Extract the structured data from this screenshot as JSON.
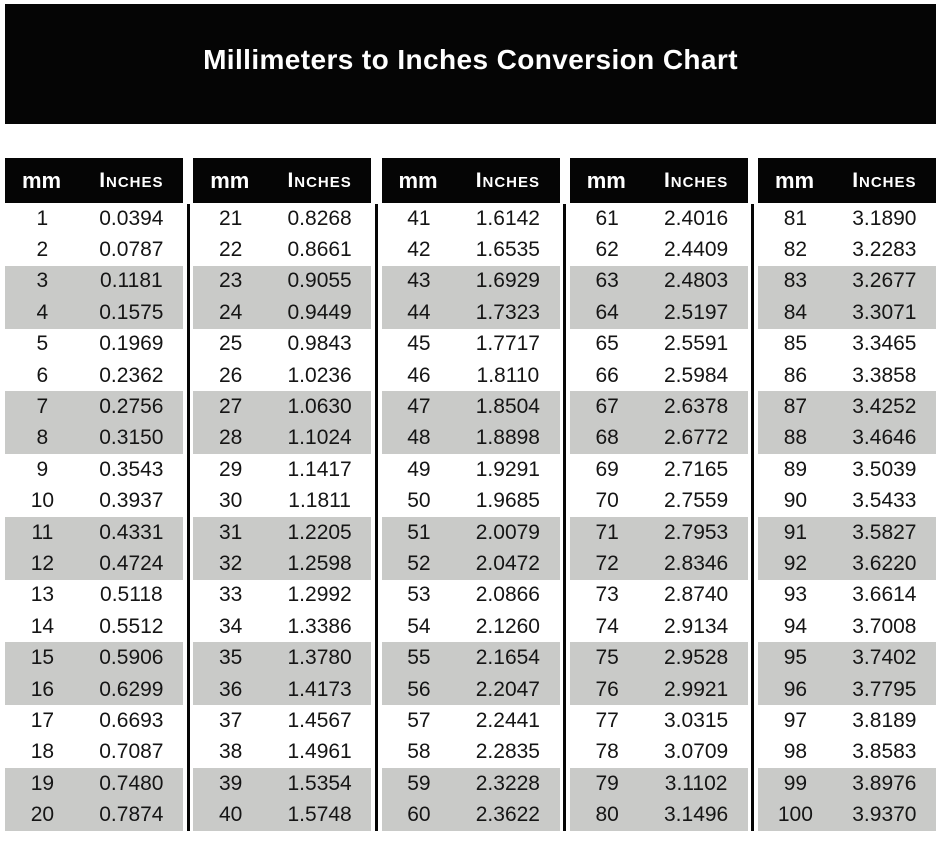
{
  "title": "Millimeters to Inches Conversion Chart",
  "colors": {
    "header_bg": "#050505",
    "header_text": "#ffffff",
    "stripe": "#c9cac8",
    "row_text": "#151515",
    "background": "#ffffff"
  },
  "table": {
    "column_headers": {
      "mm": "mm",
      "inches": "Inches"
    },
    "groups": [
      {
        "rows": [
          {
            "mm": "1",
            "inches": "0.0394"
          },
          {
            "mm": "2",
            "inches": "0.0787"
          },
          {
            "mm": "3",
            "inches": "0.1181"
          },
          {
            "mm": "4",
            "inches": "0.1575"
          },
          {
            "mm": "5",
            "inches": "0.1969"
          },
          {
            "mm": "6",
            "inches": "0.2362"
          },
          {
            "mm": "7",
            "inches": "0.2756"
          },
          {
            "mm": "8",
            "inches": "0.3150"
          },
          {
            "mm": "9",
            "inches": "0.3543"
          },
          {
            "mm": "10",
            "inches": "0.3937"
          },
          {
            "mm": "11",
            "inches": "0.4331"
          },
          {
            "mm": "12",
            "inches": "0.4724"
          },
          {
            "mm": "13",
            "inches": "0.5118"
          },
          {
            "mm": "14",
            "inches": "0.5512"
          },
          {
            "mm": "15",
            "inches": "0.5906"
          },
          {
            "mm": "16",
            "inches": "0.6299"
          },
          {
            "mm": "17",
            "inches": "0.6693"
          },
          {
            "mm": "18",
            "inches": "0.7087"
          },
          {
            "mm": "19",
            "inches": "0.7480"
          },
          {
            "mm": "20",
            "inches": "0.7874"
          }
        ]
      },
      {
        "rows": [
          {
            "mm": "21",
            "inches": "0.8268"
          },
          {
            "mm": "22",
            "inches": "0.8661"
          },
          {
            "mm": "23",
            "inches": "0.9055"
          },
          {
            "mm": "24",
            "inches": "0.9449"
          },
          {
            "mm": "25",
            "inches": "0.9843"
          },
          {
            "mm": "26",
            "inches": "1.0236"
          },
          {
            "mm": "27",
            "inches": "1.0630"
          },
          {
            "mm": "28",
            "inches": "1.1024"
          },
          {
            "mm": "29",
            "inches": "1.1417"
          },
          {
            "mm": "30",
            "inches": "1.1811"
          },
          {
            "mm": "31",
            "inches": "1.2205"
          },
          {
            "mm": "32",
            "inches": "1.2598"
          },
          {
            "mm": "33",
            "inches": "1.2992"
          },
          {
            "mm": "34",
            "inches": "1.3386"
          },
          {
            "mm": "35",
            "inches": "1.3780"
          },
          {
            "mm": "36",
            "inches": "1.4173"
          },
          {
            "mm": "37",
            "inches": "1.4567"
          },
          {
            "mm": "38",
            "inches": "1.4961"
          },
          {
            "mm": "39",
            "inches": "1.5354"
          },
          {
            "mm": "40",
            "inches": "1.5748"
          }
        ]
      },
      {
        "rows": [
          {
            "mm": "41",
            "inches": "1.6142"
          },
          {
            "mm": "42",
            "inches": "1.6535"
          },
          {
            "mm": "43",
            "inches": "1.6929"
          },
          {
            "mm": "44",
            "inches": "1.7323"
          },
          {
            "mm": "45",
            "inches": "1.7717"
          },
          {
            "mm": "46",
            "inches": "1.8110"
          },
          {
            "mm": "47",
            "inches": "1.8504"
          },
          {
            "mm": "48",
            "inches": "1.8898"
          },
          {
            "mm": "49",
            "inches": "1.9291"
          },
          {
            "mm": "50",
            "inches": "1.9685"
          },
          {
            "mm": "51",
            "inches": "2.0079"
          },
          {
            "mm": "52",
            "inches": "2.0472"
          },
          {
            "mm": "53",
            "inches": "2.0866"
          },
          {
            "mm": "54",
            "inches": "2.1260"
          },
          {
            "mm": "55",
            "inches": "2.1654"
          },
          {
            "mm": "56",
            "inches": "2.2047"
          },
          {
            "mm": "57",
            "inches": "2.2441"
          },
          {
            "mm": "58",
            "inches": "2.2835"
          },
          {
            "mm": "59",
            "inches": "2.3228"
          },
          {
            "mm": "60",
            "inches": "2.3622"
          }
        ]
      },
      {
        "rows": [
          {
            "mm": "61",
            "inches": "2.4016"
          },
          {
            "mm": "62",
            "inches": "2.4409"
          },
          {
            "mm": "63",
            "inches": "2.4803"
          },
          {
            "mm": "64",
            "inches": "2.5197"
          },
          {
            "mm": "65",
            "inches": "2.5591"
          },
          {
            "mm": "66",
            "inches": "2.5984"
          },
          {
            "mm": "67",
            "inches": "2.6378"
          },
          {
            "mm": "68",
            "inches": "2.6772"
          },
          {
            "mm": "69",
            "inches": "2.7165"
          },
          {
            "mm": "70",
            "inches": "2.7559"
          },
          {
            "mm": "71",
            "inches": "2.7953"
          },
          {
            "mm": "72",
            "inches": "2.8346"
          },
          {
            "mm": "73",
            "inches": "2.8740"
          },
          {
            "mm": "74",
            "inches": "2.9134"
          },
          {
            "mm": "75",
            "inches": "2.9528"
          },
          {
            "mm": "76",
            "inches": "2.9921"
          },
          {
            "mm": "77",
            "inches": "3.0315"
          },
          {
            "mm": "78",
            "inches": "3.0709"
          },
          {
            "mm": "79",
            "inches": "3.1102"
          },
          {
            "mm": "80",
            "inches": "3.1496"
          }
        ]
      },
      {
        "rows": [
          {
            "mm": "81",
            "inches": "3.1890"
          },
          {
            "mm": "82",
            "inches": "3.2283"
          },
          {
            "mm": "83",
            "inches": "3.2677"
          },
          {
            "mm": "84",
            "inches": "3.3071"
          },
          {
            "mm": "85",
            "inches": "3.3465"
          },
          {
            "mm": "86",
            "inches": "3.3858"
          },
          {
            "mm": "87",
            "inches": "3.4252"
          },
          {
            "mm": "88",
            "inches": "3.4646"
          },
          {
            "mm": "89",
            "inches": "3.5039"
          },
          {
            "mm": "90",
            "inches": "3.5433"
          },
          {
            "mm": "91",
            "inches": "3.5827"
          },
          {
            "mm": "92",
            "inches": "3.6220"
          },
          {
            "mm": "93",
            "inches": "3.6614"
          },
          {
            "mm": "94",
            "inches": "3.7008"
          },
          {
            "mm": "95",
            "inches": "3.7402"
          },
          {
            "mm": "96",
            "inches": "3.7795"
          },
          {
            "mm": "97",
            "inches": "3.8189"
          },
          {
            "mm": "98",
            "inches": "3.8583"
          },
          {
            "mm": "99",
            "inches": "3.8976"
          },
          {
            "mm": "100",
            "inches": "3.9370"
          }
        ]
      }
    ]
  }
}
